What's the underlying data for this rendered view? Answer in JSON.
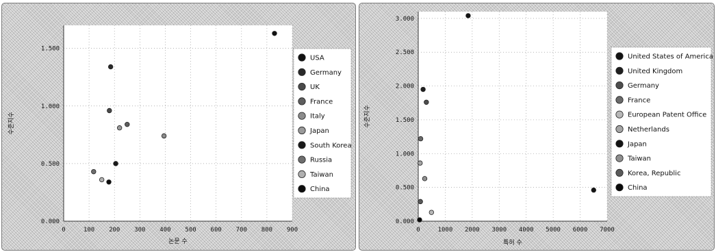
{
  "chart_data": [
    {
      "type": "scatter",
      "xlabel": "논문 수",
      "ylabel": "수준지수",
      "xlim": [
        0,
        900
      ],
      "ylim": [
        0,
        1.7
      ],
      "x_ticks": [
        "0",
        "100",
        "200",
        "300",
        "400",
        "500",
        "600",
        "700",
        "800",
        "900"
      ],
      "y_ticks": [
        "0.000",
        "0.500",
        "1.000",
        "1.500"
      ],
      "grid": true,
      "legend_position": "right",
      "series": [
        {
          "name": "USA",
          "x": 830,
          "y": 1.63,
          "color": "#121212"
        },
        {
          "name": "Germany",
          "x": 185,
          "y": 1.34,
          "color": "#2a2a2a"
        },
        {
          "name": "UK",
          "x": 180,
          "y": 0.96,
          "color": "#4a4a4a"
        },
        {
          "name": "France",
          "x": 250,
          "y": 0.84,
          "color": "#5e5e5e"
        },
        {
          "name": "Italy",
          "x": 395,
          "y": 0.74,
          "color": "#8c8c8c"
        },
        {
          "name": "Japan",
          "x": 220,
          "y": 0.81,
          "color": "#9a9a9a"
        },
        {
          "name": "South Korea",
          "x": 205,
          "y": 0.5,
          "color": "#1a1a1a"
        },
        {
          "name": "Russia",
          "x": 118,
          "y": 0.43,
          "color": "#6e6e6e"
        },
        {
          "name": "Taiwan",
          "x": 150,
          "y": 0.36,
          "color": "#b0b0b0"
        },
        {
          "name": "China",
          "x": 178,
          "y": 0.34,
          "color": "#0d0d0d"
        }
      ]
    },
    {
      "type": "scatter",
      "xlabel": "특허 수",
      "ylabel": "수준지수",
      "xlim": [
        0,
        7000
      ],
      "ylim": [
        0,
        3.1
      ],
      "x_ticks": [
        "0",
        "1000",
        "2000",
        "3000",
        "4000",
        "5000",
        "6000",
        "7000"
      ],
      "y_ticks": [
        "0.000",
        "0.500",
        "1.000",
        "1.500",
        "2.000",
        "2.500",
        "3.000"
      ],
      "grid": true,
      "legend_position": "right",
      "series": [
        {
          "name": "United States of America",
          "x": 1850,
          "y": 3.04,
          "color": "#121212"
        },
        {
          "name": "United Kingdom",
          "x": 180,
          "y": 1.95,
          "color": "#1f1f1f"
        },
        {
          "name": "Germany",
          "x": 300,
          "y": 1.76,
          "color": "#4d4d4d"
        },
        {
          "name": "France",
          "x": 90,
          "y": 1.22,
          "color": "#6a6a6a"
        },
        {
          "name": "European Patent Office",
          "x": 490,
          "y": 0.13,
          "color": "#b8b8b8"
        },
        {
          "name": "Netherlands",
          "x": 70,
          "y": 0.86,
          "color": "#a5a5a5"
        },
        {
          "name": "Japan",
          "x": 6500,
          "y": 0.46,
          "color": "#141414"
        },
        {
          "name": "Taiwan",
          "x": 240,
          "y": 0.63,
          "color": "#8f8f8f"
        },
        {
          "name": "Korea, Republic",
          "x": 80,
          "y": 0.29,
          "color": "#5a5a5a"
        },
        {
          "name": "China",
          "x": 50,
          "y": 0.02,
          "color": "#0a0a0a"
        }
      ]
    }
  ]
}
